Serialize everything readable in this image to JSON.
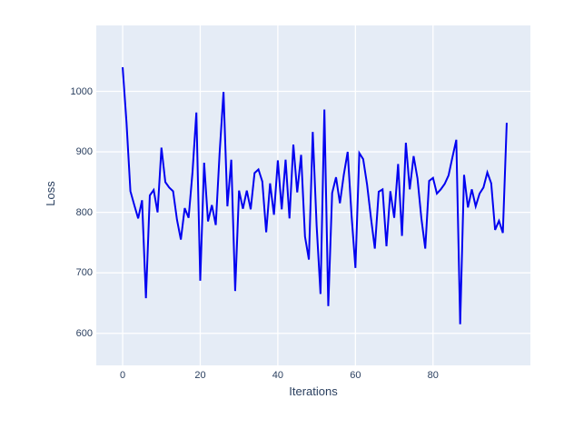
{
  "chart_data": {
    "type": "line",
    "title": "",
    "xlabel": "Iterations",
    "ylabel": "Loss",
    "x_ticks": [
      0,
      20,
      40,
      60,
      80
    ],
    "y_ticks": [
      600,
      700,
      800,
      900,
      1000
    ],
    "xlim": [
      -6.8,
      105.1
    ],
    "ylim": [
      547,
      1109
    ],
    "grid": true,
    "legend": false,
    "series": [
      {
        "name": "loss",
        "x_start": 0,
        "x_step": 1,
        "values": [
          1040,
          948,
          835,
          812,
          790,
          820,
          658,
          828,
          837,
          800,
          907,
          850,
          841,
          835,
          788,
          755,
          807,
          791,
          866,
          965,
          687,
          882,
          785,
          812,
          779,
          899,
          999,
          810,
          887,
          670,
          836,
          806,
          836,
          805,
          865,
          871,
          851,
          767,
          848,
          796,
          886,
          805,
          887,
          790,
          912,
          833,
          895,
          760,
          722,
          933,
          778,
          665,
          970,
          645,
          832,
          858,
          815,
          862,
          900,
          795,
          708,
          898,
          888,
          846,
          791,
          740,
          834,
          838,
          744,
          835,
          791,
          880,
          761,
          915,
          838,
          893,
          856,
          790,
          740,
          852,
          857,
          831,
          838,
          847,
          861,
          891,
          920,
          615,
          862,
          808,
          838,
          810,
          831,
          841,
          866,
          848,
          771,
          786,
          766,
          948
        ]
      }
    ],
    "colors": {
      "line": "#0101f0",
      "plot_background": "#e5ecf6",
      "grid": "#ffffff",
      "text": "#2a3f5f",
      "figure_background": "#ffffff"
    }
  }
}
